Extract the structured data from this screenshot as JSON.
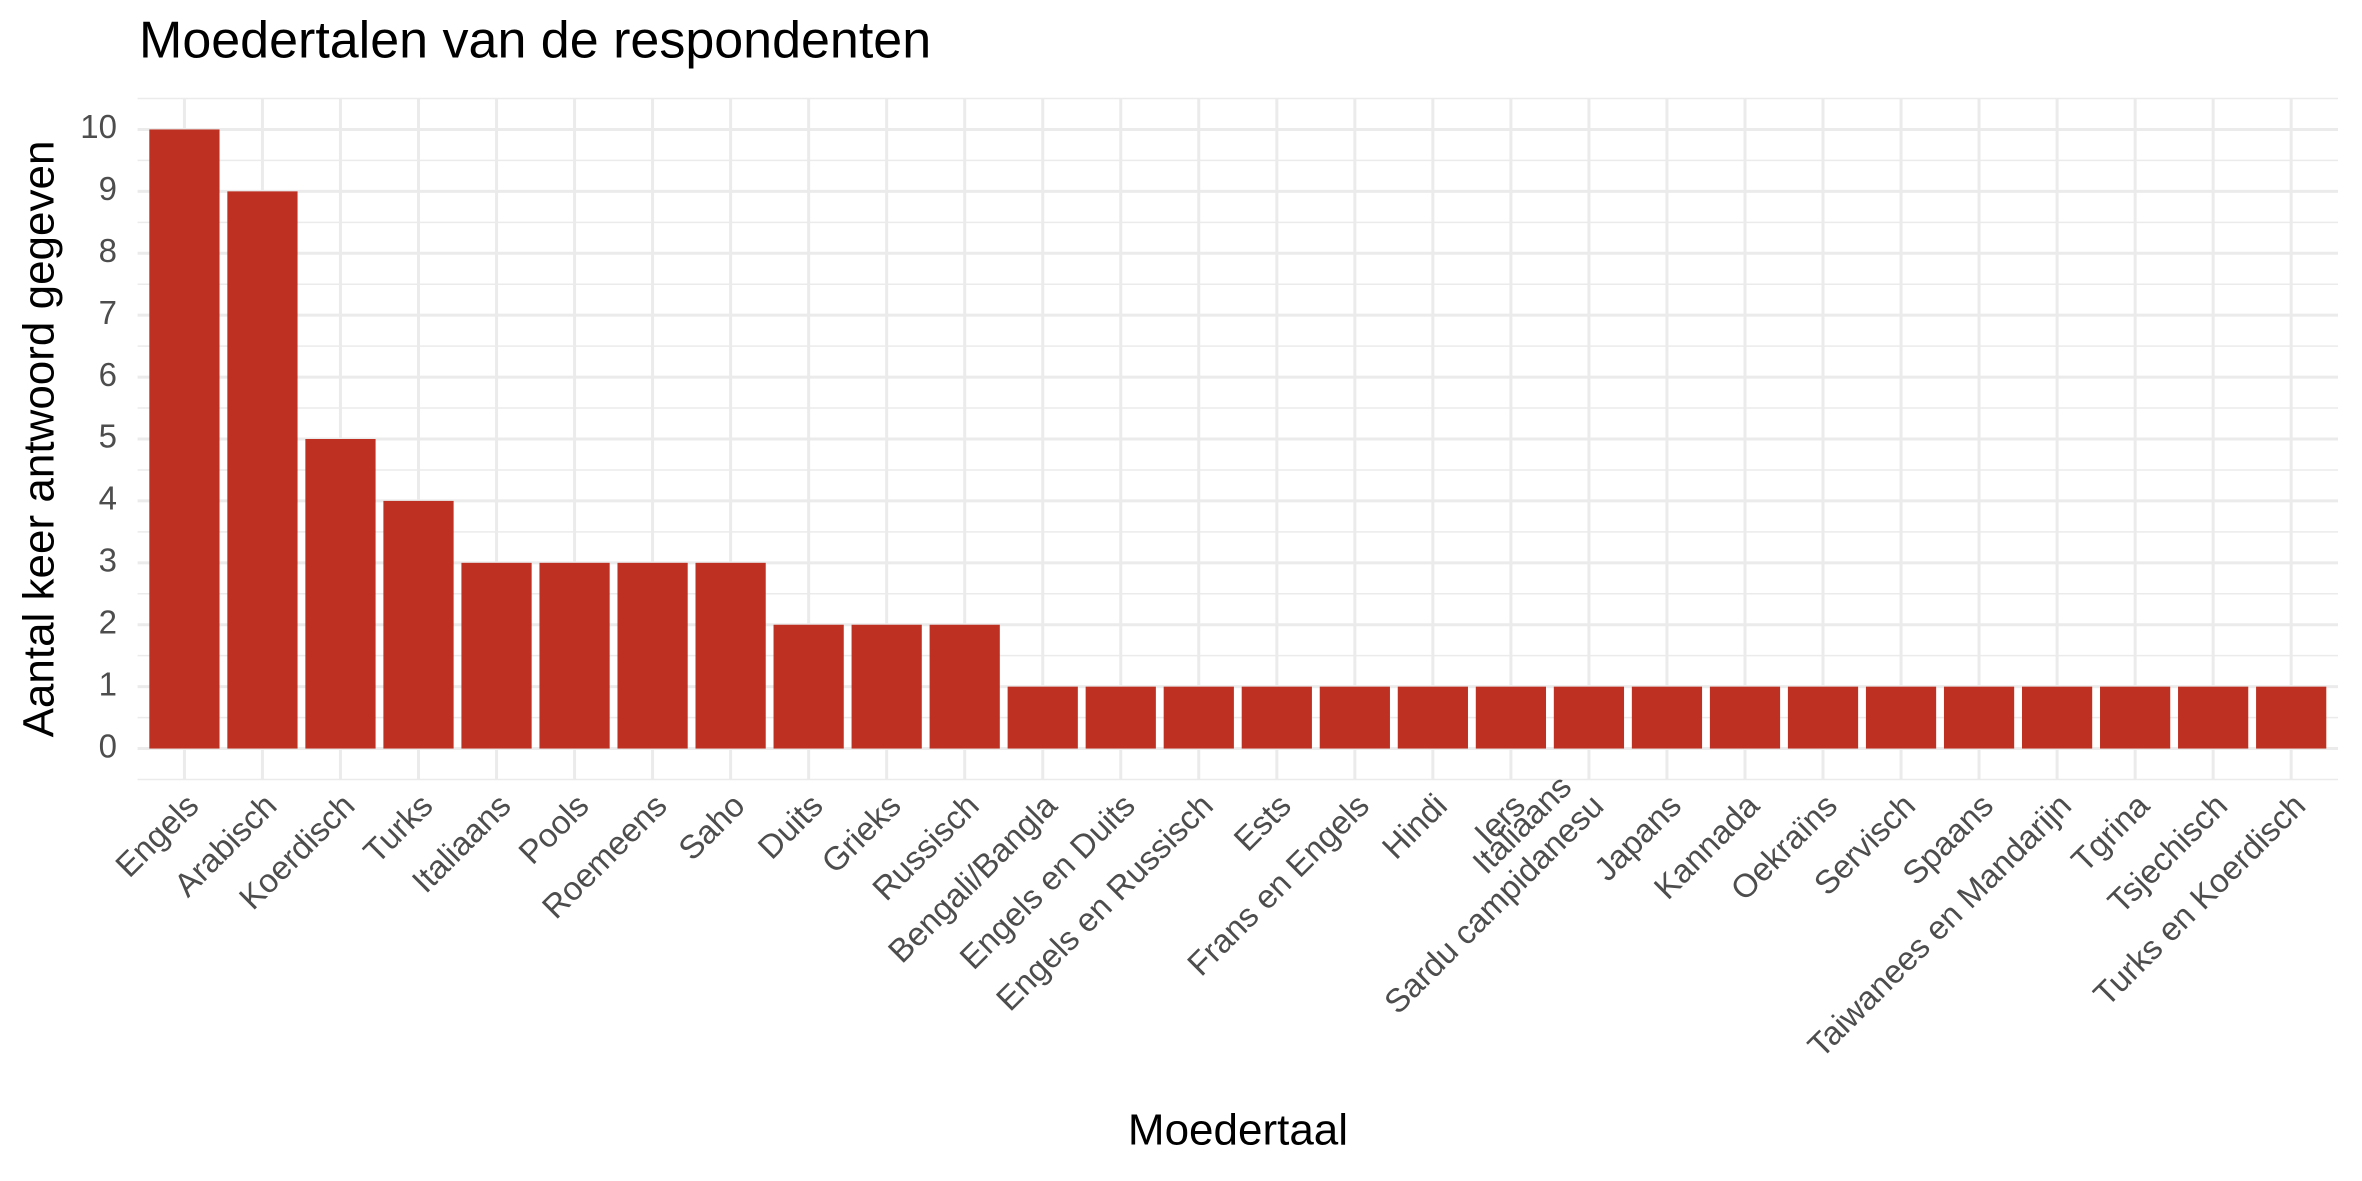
{
  "chart_data": {
    "type": "bar",
    "title": "Moedertalen van de respondenten",
    "x_label": "Moedertaal",
    "y_label": "Aantal keer antwoord gegeven",
    "categories": [
      "Engels",
      "Arabisch",
      "Koerdisch",
      "Turks",
      "Italiaans",
      "Pools",
      "Roemeens",
      "Saho",
      "Duits",
      "Grieks",
      "Russisch",
      "Bengali/Bangla",
      "Engels en Duits",
      "Engels en Russisch",
      "Ests",
      "Frans en Engels",
      "Hindi",
      "Iers",
      "Italiaans\nSardu campidanesu",
      "Japans",
      "Kannada",
      "Oekraïns",
      "Servisch",
      "Spaans",
      "Taiwanees en Mandarijn",
      "Tgrina",
      "Tsjechisch",
      "Turks en Koerdisch"
    ],
    "values": [
      10,
      9,
      5,
      4,
      3,
      3,
      3,
      3,
      2,
      2,
      2,
      1,
      1,
      1,
      1,
      1,
      1,
      1,
      1,
      1,
      1,
      1,
      1,
      1,
      1,
      1,
      1,
      1
    ],
    "color": "#be3122",
    "ylim": [
      -0.5,
      10.5
    ],
    "yticks": [
      0,
      1,
      2,
      3,
      4,
      5,
      6,
      7,
      8,
      9,
      10
    ],
    "grid": true
  }
}
